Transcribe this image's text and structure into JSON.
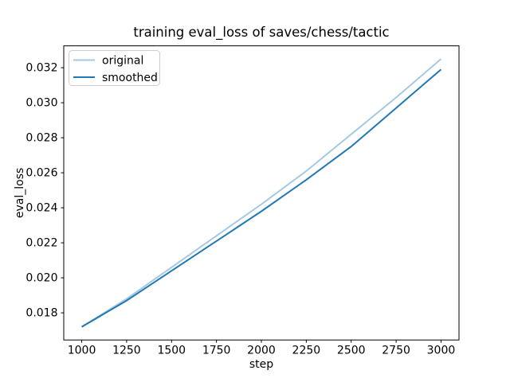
{
  "chart_data": {
    "type": "line",
    "title": "training eval_loss of saves/chess/tactic",
    "xlabel": "step",
    "ylabel": "eval_loss",
    "x": [
      1000,
      1250,
      1500,
      1750,
      2000,
      2250,
      2500,
      2750,
      3000
    ],
    "series": [
      {
        "name": "original",
        "color": "#a6c9e2",
        "linewidth": 2,
        "values": [
          0.0172,
          0.0188,
          0.0206,
          0.0224,
          0.0242,
          0.0261,
          0.0282,
          0.0303,
          0.0325
        ]
      },
      {
        "name": "smoothed",
        "color": "#1f77b4",
        "linewidth": 2,
        "values": [
          0.0172,
          0.0187,
          0.0204,
          0.0221,
          0.0238,
          0.0256,
          0.0275,
          0.0297,
          0.0319
        ]
      }
    ],
    "xlim": [
      900,
      3100
    ],
    "ylim": [
      0.01645,
      0.03325
    ],
    "xticks": [
      1000,
      1250,
      1500,
      1750,
      2000,
      2250,
      2500,
      2750,
      3000
    ],
    "yticks": [
      0.018,
      0.02,
      0.022,
      0.024,
      0.026,
      0.028,
      0.03,
      0.032
    ],
    "ytick_decimals": 3,
    "grid": false,
    "legend": {
      "position": "upper left",
      "entries": [
        "original",
        "smoothed"
      ]
    },
    "colors": {
      "background": "#ffffff",
      "axes_background": "#ffffff",
      "spine": "#000000",
      "tick": "#000000",
      "text": "#000000",
      "legend_border": "#cccccc",
      "legend_background": "#ffffff"
    }
  }
}
